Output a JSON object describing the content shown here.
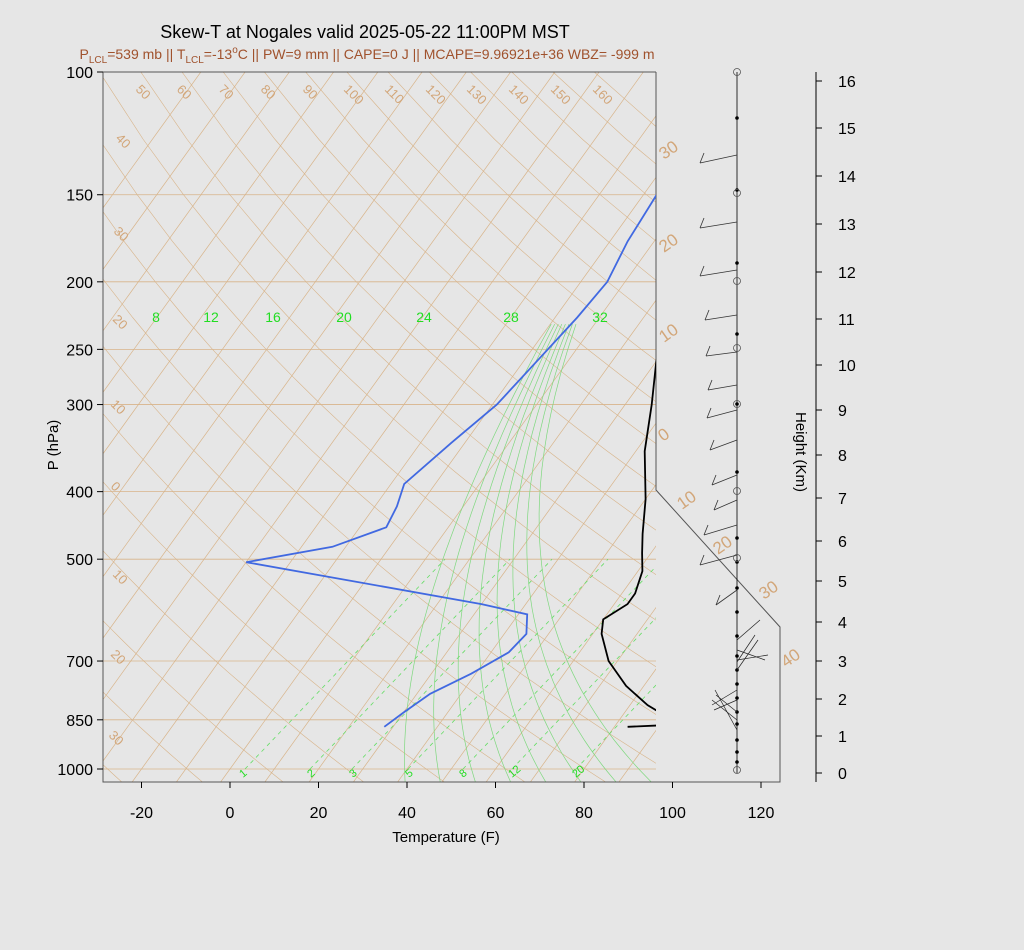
{
  "chart_data": {
    "type": "line",
    "title": "Skew-T at Nogales valid 2025-05-22 11:00PM MST",
    "subtitle": {
      "p_sym": "P",
      "p_sub": "LCL",
      "p_val": "=539 mb || ",
      "t_sym": "T",
      "t_sub": "LCL",
      "t_val": "=-13",
      "deg": "o",
      "rest": "C || PW=9 mm || CAPE=0 J || MCAPE=9.96921e+36 WBZ= -999 m"
    },
    "xlabel": "Temperature (F)",
    "ylabel": "P (hPa)",
    "y2label": "Height (Km)",
    "xlim": [
      -20,
      120
    ],
    "x_ticks": [
      "-20",
      "0",
      "20",
      "40",
      "60",
      "80",
      "100",
      "120"
    ],
    "y_ticks": [
      "100",
      "150",
      "200",
      "250",
      "300",
      "400",
      "500",
      "700",
      "850",
      "1000"
    ],
    "height_ticks": [
      "0",
      "1",
      "2",
      "3",
      "4",
      "5",
      "6",
      "7",
      "8",
      "9",
      "10",
      "11",
      "12",
      "13",
      "14",
      "15",
      "16"
    ],
    "isotherm_labels": [
      "50",
      "60",
      "70",
      "80",
      "90",
      "100",
      "110",
      "120",
      "130",
      "140",
      "150",
      "160",
      "40",
      "30",
      "20",
      "10",
      "0",
      "10",
      "20",
      "30"
    ],
    "right_labels": [
      "30",
      "20",
      "10",
      "0",
      "10",
      "20",
      "30",
      "40"
    ],
    "mixing_ratio_labels": [
      "8",
      "12",
      "16",
      "20",
      "24",
      "28",
      "32"
    ],
    "wetbulb_labels": [
      "1",
      "2",
      "3",
      "5",
      "8",
      "12",
      "20"
    ],
    "series": [
      {
        "name": "Temperature",
        "color": "#000000",
        "points": [
          [
            83,
            870
          ],
          [
            90,
            866
          ],
          [
            92,
            862
          ],
          [
            89,
            835
          ],
          [
            84,
            810
          ],
          [
            76,
            760
          ],
          [
            68,
            700
          ],
          [
            62,
            640
          ],
          [
            60,
            610
          ],
          [
            63,
            580
          ],
          [
            63,
            560
          ],
          [
            61,
            520
          ],
          [
            58,
            490
          ],
          [
            55,
            460
          ],
          [
            50,
            410
          ],
          [
            42,
            350
          ],
          [
            36,
            300
          ],
          [
            30,
            260
          ],
          [
            26,
            225
          ],
          [
            25,
            200
          ],
          [
            24,
            175
          ],
          [
            26,
            150
          ],
          [
            29,
            130
          ],
          [
            37,
            115
          ],
          [
            44,
            100
          ]
        ]
      },
      {
        "name": "Dewpoint",
        "color": "#4169e1",
        "points": [
          [
            28,
            870
          ],
          [
            30,
            830
          ],
          [
            33,
            780
          ],
          [
            39,
            730
          ],
          [
            44,
            680
          ],
          [
            45,
            640
          ],
          [
            42,
            600
          ],
          [
            30,
            580
          ],
          [
            -30,
            505
          ],
          [
            -13,
            480
          ],
          [
            -4,
            450
          ],
          [
            -5,
            420
          ],
          [
            -7,
            390
          ],
          [
            -3,
            340
          ],
          [
            1,
            300
          ],
          [
            3,
            260
          ],
          [
            5,
            225
          ],
          [
            6,
            200
          ],
          [
            4,
            175
          ],
          [
            3,
            150
          ],
          [
            4,
            130
          ],
          [
            19,
            115
          ],
          [
            26,
            100
          ]
        ]
      }
    ],
    "wind_barbs": "plotted at selected heights in the right panel",
    "grid": true,
    "legend": "none"
  }
}
